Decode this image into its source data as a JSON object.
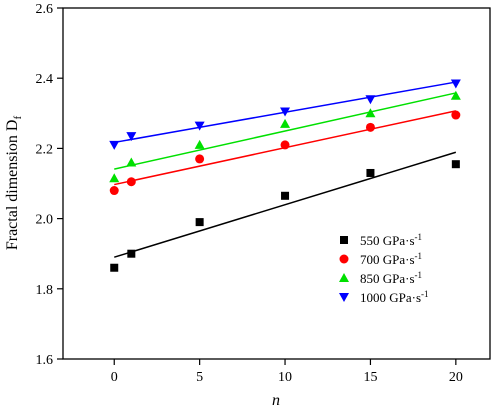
{
  "chart_data": {
    "type": "scatter",
    "title": "",
    "xlabel": "n",
    "ylabel": "Fractal dimension D",
    "ylabel_subscript": "f",
    "xlim": [
      -3,
      22
    ],
    "ylim": [
      1.6,
      2.6
    ],
    "xticks": [
      0,
      5,
      10,
      15,
      20
    ],
    "yticks": [
      1.6,
      1.8,
      2.0,
      2.2,
      2.4,
      2.6
    ],
    "ytick_labels": [
      "1.6",
      "1.8",
      "2.0",
      "2.2",
      "2.4",
      "2.6"
    ],
    "legend_position": "lower-right",
    "grid": false,
    "x": [
      0,
      1,
      5,
      10,
      15,
      20
    ],
    "series": [
      {
        "name": "550 GPa·s",
        "name_sup": "-1",
        "marker": "square",
        "color": "#000000",
        "values": [
          1.86,
          1.9,
          1.99,
          2.065,
          2.13,
          2.155
        ],
        "fit": [
          1.89,
          2.189
        ]
      },
      {
        "name": "700 GPa·s",
        "name_sup": "-1",
        "marker": "circle",
        "color": "#ff0000",
        "values": [
          2.08,
          2.105,
          2.17,
          2.21,
          2.26,
          2.295
        ],
        "fit": [
          2.097,
          2.307
        ]
      },
      {
        "name": "850 GPa·s",
        "name_sup": "-1",
        "marker": "triangle-up",
        "color": "#00e000",
        "values": [
          2.115,
          2.16,
          2.21,
          2.27,
          2.3,
          2.35
        ],
        "fit": [
          2.141,
          2.358
        ]
      },
      {
        "name": "1000 GPa·s",
        "name_sup": "-1",
        "marker": "triangle-down",
        "color": "#0000ff",
        "values": [
          2.21,
          2.235,
          2.265,
          2.305,
          2.34,
          2.385
        ],
        "fit": [
          2.217,
          2.389
        ]
      }
    ]
  }
}
